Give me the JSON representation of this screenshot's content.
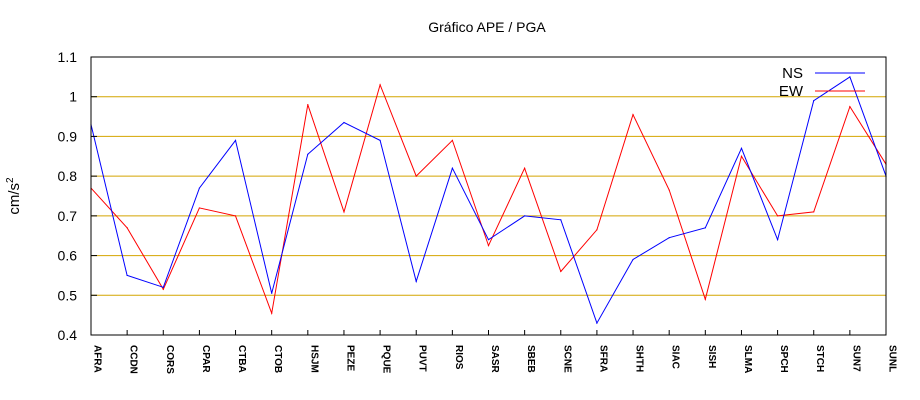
{
  "chart_data": {
    "type": "line",
    "title": "Gráfico  APE / PGA",
    "ylabel": "cm/s",
    "ylabel_superscript": "2",
    "xlabel": "",
    "ylim": [
      0.4,
      1.1
    ],
    "yticks": [
      "0.4",
      "0.5",
      "0.6",
      "0.7",
      "0.8",
      "0.9",
      "1",
      "1.1"
    ],
    "grid": "horizontal",
    "legend_position": "top-right",
    "categories": [
      "AFRA",
      "CCDN",
      "CORS",
      "CPAR",
      "CTBA",
      "CTOB",
      "HSJM",
      "PEZE",
      "PQUE",
      "PUVT",
      "RIOS",
      "SASR",
      "SBEB",
      "SCNE",
      "SFRA",
      "SHTH",
      "SIAC",
      "SISH",
      "SLMA",
      "SPCH",
      "STCH",
      "SUN7",
      "SUNL"
    ],
    "series": [
      {
        "name": "NS",
        "color": "#0000ff",
        "values": [
          0.93,
          0.55,
          0.52,
          0.77,
          0.89,
          0.505,
          0.855,
          0.935,
          0.89,
          0.535,
          0.82,
          0.64,
          0.7,
          0.69,
          0.43,
          0.59,
          0.645,
          0.67,
          0.87,
          0.64,
          0.99,
          1.05,
          0.8
        ]
      },
      {
        "name": "EW",
        "color": "#ff0000",
        "values": [
          0.77,
          0.67,
          0.515,
          0.72,
          0.7,
          0.455,
          0.98,
          0.71,
          1.03,
          0.8,
          0.89,
          0.625,
          0.82,
          0.56,
          0.665,
          0.955,
          0.765,
          0.49,
          0.85,
          0.7,
          0.71,
          0.975,
          0.83
        ]
      }
    ],
    "colors": {
      "grid": "#d4a500",
      "frame": "#000000"
    }
  }
}
